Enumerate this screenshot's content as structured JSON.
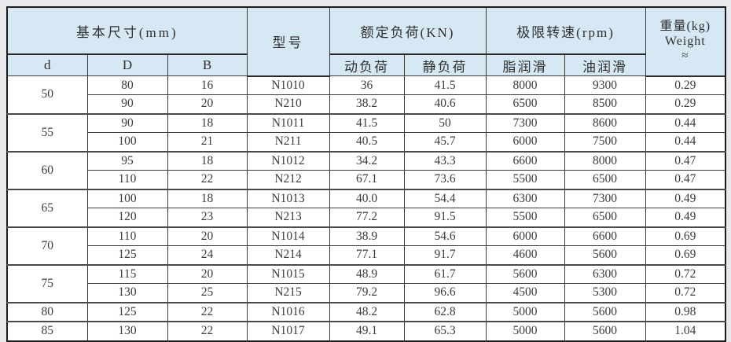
{
  "table": {
    "title_semantics": "cylindrical-roller-bearing-specifications",
    "header": {
      "basic_dims": "基本尺寸(mm)",
      "col_d": "d",
      "col_D": "D",
      "col_B": "B",
      "model": "型号",
      "rated_load": "额定负荷(KN)",
      "dynamic_load": "动负荷",
      "static_load": "静负荷",
      "limit_speed": "极限转速(rpm)",
      "grease_lube": "脂润滑",
      "oil_lube": "油润滑",
      "weight_line1": "重量(kg)",
      "weight_line2": "Weight",
      "weight_line3": "≈"
    },
    "groups": [
      {
        "d": "50",
        "rows": [
          [
            "80",
            "16",
            "N1010",
            "36",
            "41.5",
            "8000",
            "9300",
            "0.29"
          ],
          [
            "90",
            "20",
            "N210",
            "38.2",
            "40.6",
            "6500",
            "8500",
            "0.29"
          ]
        ]
      },
      {
        "d": "55",
        "rows": [
          [
            "90",
            "18",
            "N1011",
            "41.5",
            "50",
            "7300",
            "8600",
            "0.44"
          ],
          [
            "100",
            "21",
            "N211",
            "40.5",
            "45.7",
            "6000",
            "7500",
            "0.44"
          ]
        ]
      },
      {
        "d": "60",
        "rows": [
          [
            "95",
            "18",
            "N1012",
            "34.2",
            "43.3",
            "6600",
            "8000",
            "0.47"
          ],
          [
            "110",
            "22",
            "N212",
            "67.1",
            "73.6",
            "5500",
            "6500",
            "0.47"
          ]
        ]
      },
      {
        "d": "65",
        "rows": [
          [
            "100",
            "18",
            "N1013",
            "40.0",
            "54.4",
            "6300",
            "7300",
            "0.49"
          ],
          [
            "120",
            "23",
            "N213",
            "77.2",
            "91.5",
            "5500",
            "6500",
            "0.49"
          ]
        ]
      },
      {
        "d": "70",
        "rows": [
          [
            "110",
            "20",
            "N1014",
            "38.9",
            "54.6",
            "6000",
            "6600",
            "0.69"
          ],
          [
            "125",
            "24",
            "N214",
            "77.1",
            "91.7",
            "4600",
            "5600",
            "0.69"
          ]
        ]
      },
      {
        "d": "75",
        "rows": [
          [
            "115",
            "20",
            "N1015",
            "48.9",
            "61.7",
            "5600",
            "6300",
            "0.72"
          ],
          [
            "130",
            "25",
            "N215",
            "79.2",
            "96.6",
            "4500",
            "5300",
            "0.72"
          ]
        ]
      },
      {
        "d": "80",
        "rows": [
          [
            "125",
            "22",
            "N1016",
            "48.2",
            "62.8",
            "5000",
            "5600",
            "0.98"
          ]
        ]
      },
      {
        "d": "85",
        "rows": [
          [
            "130",
            "22",
            "N1017",
            "49.1",
            "65.3",
            "5000",
            "5600",
            "1.04"
          ]
        ]
      }
    ],
    "colors": {
      "header_bg": "#d7e8f5",
      "page_bg": "#e9e9ed",
      "border_dark": "#2a2a2a",
      "border_light": "#9a9a9a",
      "text": "#3c3c3c"
    }
  }
}
